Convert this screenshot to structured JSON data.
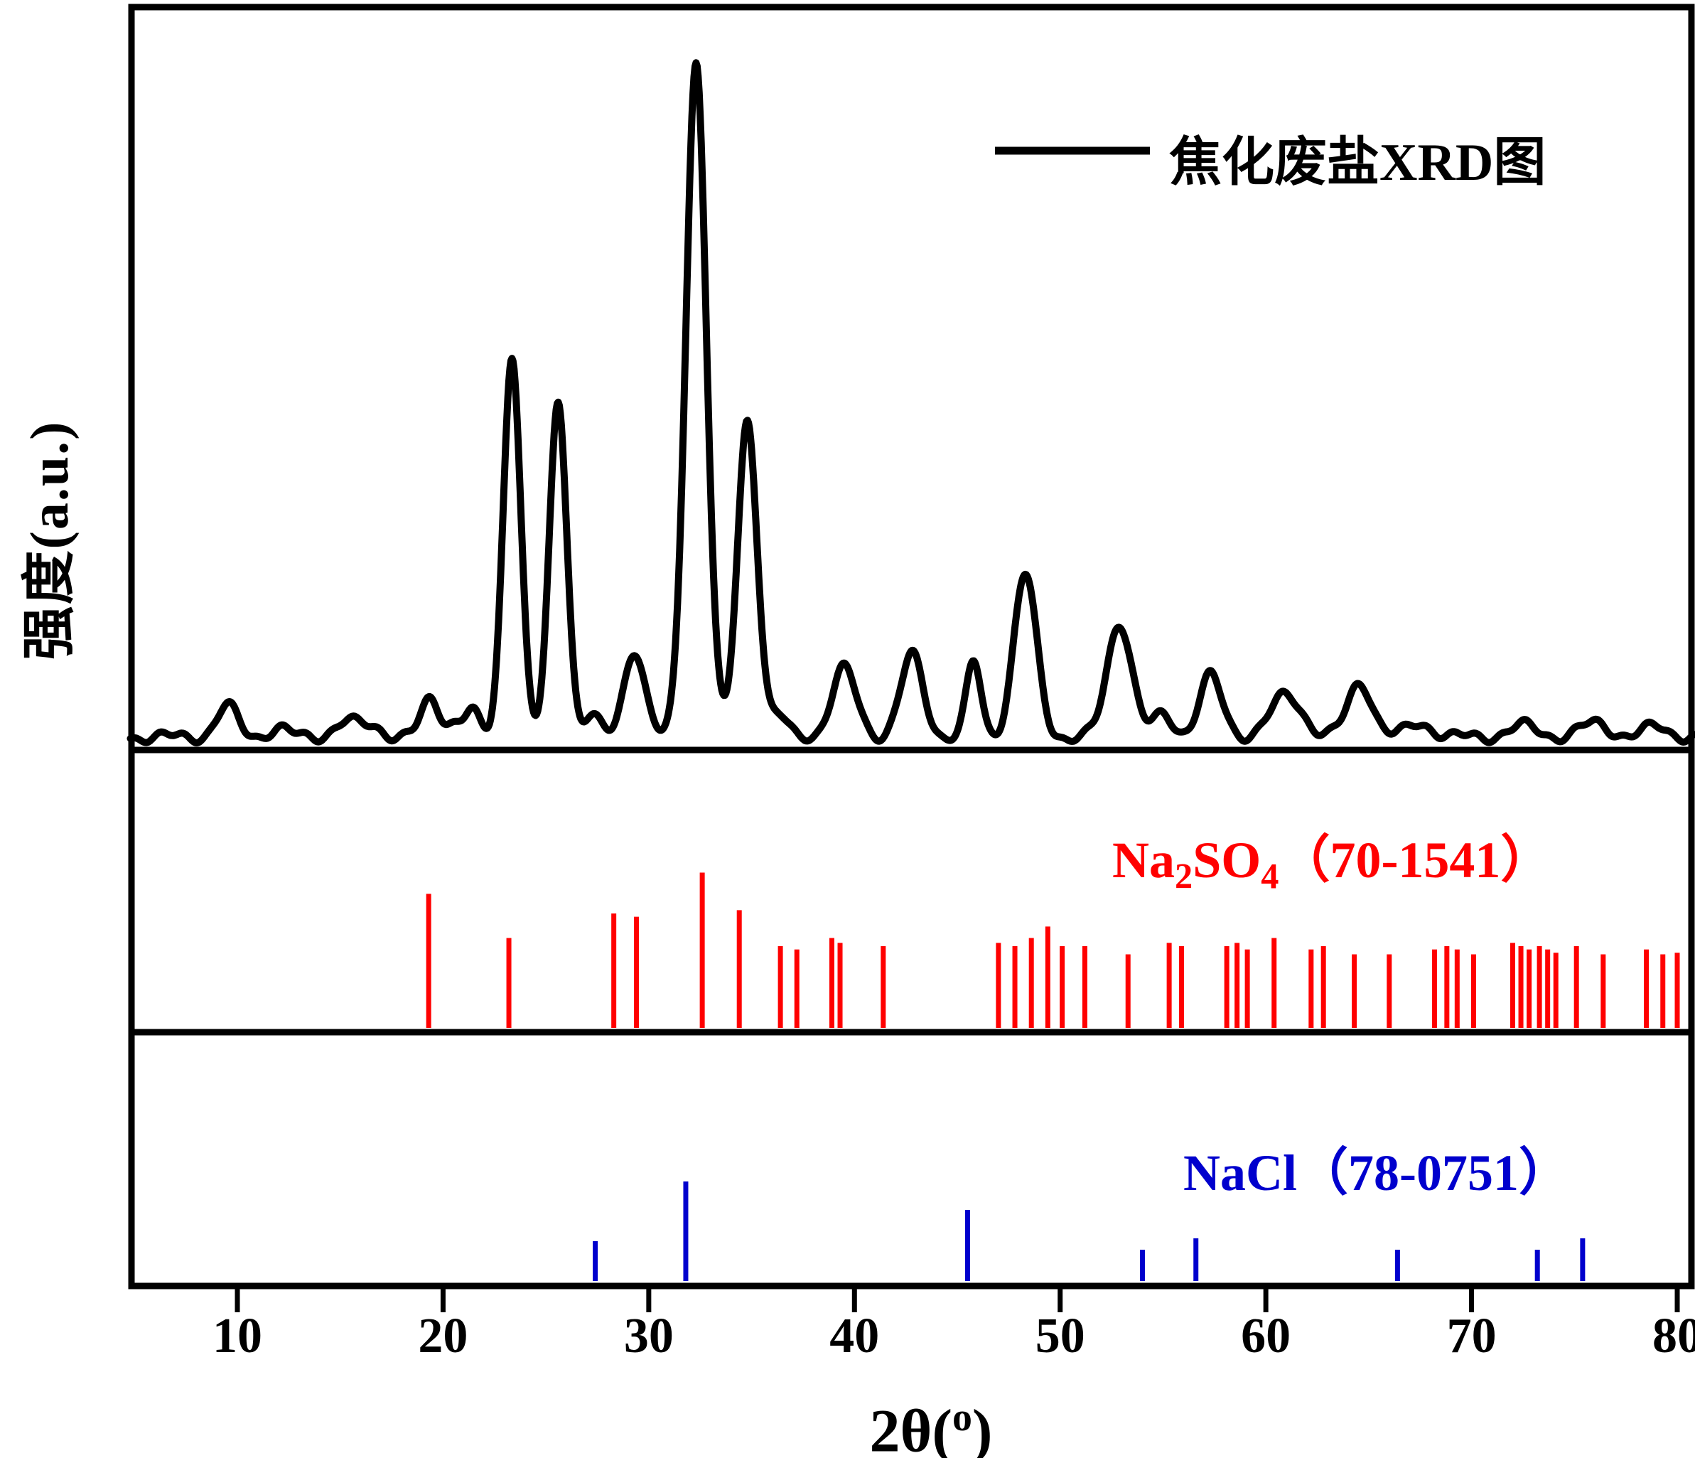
{
  "figure": {
    "ylabel": "强度(a.u.)",
    "xlabel": {
      "base": "2θ(",
      "sup": "o",
      "close": ")"
    },
    "legend": {
      "label": "焦化废盐XRD图"
    },
    "labels": {
      "na2so4": {
        "p1": "Na",
        "sub1": "2",
        "p2": "SO",
        "sub2": "4",
        "p3": "（70-1541）"
      },
      "nacl": {
        "p1": "NaCl",
        "p3": "（78-0751）"
      }
    },
    "colors": {
      "curve": "#000000",
      "na2so4": "#ff0000",
      "nacl": "#0000cd"
    }
  },
  "chart_data": {
    "type": "line",
    "title": "",
    "xlabel": "2θ(°)",
    "ylabel": "强度(a.u.)",
    "xlim": [
      4.8,
      80.8
    ],
    "x_ticks": [
      10,
      20,
      30,
      40,
      50,
      60,
      70,
      80
    ],
    "legend_position": "top-right",
    "grid": false,
    "panels": [
      {
        "name": "焦化废盐XRD图",
        "type": "curve",
        "color": "#000000",
        "baseline": 0.012,
        "peaks_format": "[two_theta_deg, relative_intensity_0to1, gaussian_sigma_deg]",
        "peaks": [
          [
            9.5,
            0.045,
            0.5
          ],
          [
            12.0,
            0.012,
            0.5
          ],
          [
            15.3,
            0.022,
            0.6
          ],
          [
            16.6,
            0.015,
            0.5
          ],
          [
            19.4,
            0.055,
            0.45
          ],
          [
            20.6,
            0.02,
            0.4
          ],
          [
            21.4,
            0.035,
            0.35
          ],
          [
            23.35,
            0.57,
            0.42
          ],
          [
            25.6,
            0.5,
            0.42
          ],
          [
            27.2,
            0.03,
            0.4
          ],
          [
            29.3,
            0.13,
            0.5
          ],
          [
            32.3,
            1.0,
            0.5
          ],
          [
            34.8,
            0.47,
            0.48
          ],
          [
            36.3,
            0.03,
            0.4
          ],
          [
            39.5,
            0.1,
            0.6
          ],
          [
            42.8,
            0.12,
            0.55
          ],
          [
            45.8,
            0.11,
            0.35
          ],
          [
            48.3,
            0.24,
            0.55
          ],
          [
            52.9,
            0.17,
            0.6
          ],
          [
            55.0,
            0.03,
            0.5
          ],
          [
            57.3,
            0.09,
            0.55
          ],
          [
            61.0,
            0.06,
            0.8
          ],
          [
            64.6,
            0.08,
            0.6
          ],
          [
            67.5,
            0.02,
            0.6
          ],
          [
            72.5,
            0.016,
            0.7
          ],
          [
            76.0,
            0.02,
            0.7
          ],
          [
            79.0,
            0.015,
            0.6
          ]
        ]
      },
      {
        "name": "Na2SO4（70-1541）",
        "type": "sticks",
        "color": "#ff0000",
        "sticks_format": "[two_theta_deg, relative_intensity_0to1]",
        "sticks": [
          [
            19.3,
            0.82
          ],
          [
            23.2,
            0.55
          ],
          [
            28.3,
            0.7
          ],
          [
            29.4,
            0.68
          ],
          [
            32.6,
            0.95
          ],
          [
            34.4,
            0.72
          ],
          [
            36.4,
            0.5
          ],
          [
            37.2,
            0.48
          ],
          [
            38.9,
            0.55
          ],
          [
            39.3,
            0.52
          ],
          [
            41.4,
            0.5
          ],
          [
            47.0,
            0.52
          ],
          [
            47.8,
            0.5
          ],
          [
            48.6,
            0.55
          ],
          [
            49.4,
            0.62
          ],
          [
            50.1,
            0.5
          ],
          [
            51.2,
            0.5
          ],
          [
            53.3,
            0.45
          ],
          [
            55.3,
            0.52
          ],
          [
            55.9,
            0.5
          ],
          [
            58.1,
            0.5
          ],
          [
            58.6,
            0.52
          ],
          [
            59.1,
            0.48
          ],
          [
            60.4,
            0.55
          ],
          [
            62.2,
            0.48
          ],
          [
            62.8,
            0.5
          ],
          [
            64.3,
            0.45
          ],
          [
            66.0,
            0.45
          ],
          [
            68.2,
            0.48
          ],
          [
            68.8,
            0.5
          ],
          [
            69.3,
            0.48
          ],
          [
            70.1,
            0.45
          ],
          [
            72.0,
            0.52
          ],
          [
            72.4,
            0.5
          ],
          [
            72.8,
            0.48
          ],
          [
            73.3,
            0.5
          ],
          [
            73.7,
            0.48
          ],
          [
            74.1,
            0.46
          ],
          [
            75.1,
            0.5
          ],
          [
            76.4,
            0.45
          ],
          [
            78.5,
            0.48
          ],
          [
            79.3,
            0.45
          ],
          [
            80.0,
            0.46
          ]
        ]
      },
      {
        "name": "NaCl（78-0751）",
        "type": "sticks",
        "color": "#0000cd",
        "sticks_format": "[two_theta_deg, relative_intensity_0to1]",
        "sticks": [
          [
            27.4,
            0.28
          ],
          [
            31.8,
            0.7
          ],
          [
            45.5,
            0.5
          ],
          [
            54.0,
            0.22
          ],
          [
            56.6,
            0.3
          ],
          [
            66.4,
            0.22
          ],
          [
            73.2,
            0.22
          ],
          [
            75.4,
            0.3
          ]
        ]
      }
    ]
  }
}
